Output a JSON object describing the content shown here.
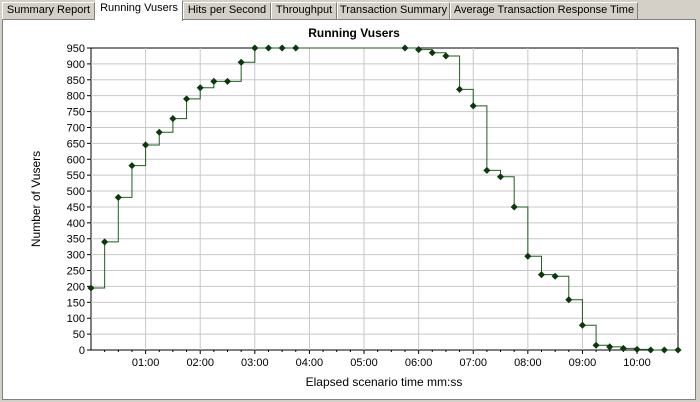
{
  "tabs": [
    {
      "label": "Summary Report",
      "active": false
    },
    {
      "label": "Running Vusers",
      "active": true
    },
    {
      "label": "Hits per Second",
      "active": false
    },
    {
      "label": "Throughput",
      "active": false
    },
    {
      "label": "Transaction Summary",
      "active": false
    },
    {
      "label": "Average Transaction Response Time",
      "active": false
    }
  ],
  "colors": {
    "line": "#1e5e1e",
    "marker": "#0a3a0a",
    "grid": "#c8c8c8",
    "background": "#ffffff",
    "chrome": "#d4d0c8"
  },
  "chart_data": {
    "type": "line",
    "step": true,
    "title": "Running Vusers",
    "xlabel": "Elapsed scenario time mm:ss",
    "ylabel": "Number of Vusers",
    "xlim": [
      0,
      645
    ],
    "ylim": [
      0,
      950
    ],
    "yticks": [
      0,
      50,
      100,
      150,
      200,
      250,
      300,
      350,
      400,
      450,
      500,
      550,
      600,
      650,
      700,
      750,
      800,
      850,
      900,
      950
    ],
    "xticks": [
      60,
      120,
      180,
      240,
      300,
      360,
      420,
      480,
      540,
      600
    ],
    "xtick_labels": [
      "01:00",
      "02:00",
      "03:00",
      "04:00",
      "05:00",
      "06:00",
      "07:00",
      "08:00",
      "09:00",
      "10:00"
    ],
    "grid": true,
    "series": [
      {
        "x": [
          0,
          15,
          30,
          45,
          60,
          75,
          90,
          105,
          120,
          135,
          150,
          165,
          180,
          195,
          210,
          225,
          345,
          360,
          375,
          390,
          405,
          420,
          435,
          450,
          465,
          480,
          495,
          510,
          525,
          540,
          555,
          570,
          585,
          600,
          615,
          630,
          645
        ],
        "y": [
          195,
          340,
          480,
          580,
          645,
          685,
          728,
          790,
          825,
          845,
          845,
          905,
          950,
          950,
          950,
          950,
          950,
          945,
          935,
          925,
          820,
          768,
          565,
          545,
          450,
          295,
          237,
          232,
          158,
          78,
          15,
          10,
          5,
          2,
          0,
          0,
          0
        ]
      }
    ]
  }
}
